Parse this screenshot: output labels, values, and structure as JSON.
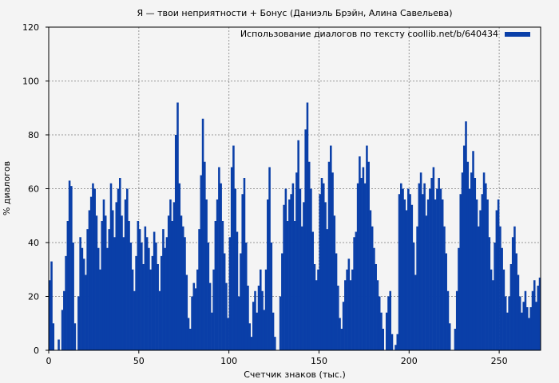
{
  "chart_data": {
    "type": "bar",
    "title": "Я — твои неприятности + Бонус (Даниэль Брэйн, Алина Савельева)",
    "xlabel": "Счетчик знаков (тыс.)",
    "ylabel": "% диалогов",
    "xlim": [
      0,
      273
    ],
    "ylim": [
      0,
      120
    ],
    "xticks": [
      "0",
      "50",
      "100",
      "150",
      "200",
      "250"
    ],
    "yticks": [
      "0",
      "20",
      "40",
      "60",
      "80",
      "100",
      "120"
    ],
    "grid": true,
    "legend_position": "top-right",
    "series": [
      {
        "name": "Использование диалогов по тексту coollib.net/b/640434",
        "color": "#0a3fa8",
        "points": [
          [
            1,
            26
          ],
          [
            2,
            33
          ],
          [
            3,
            10
          ],
          [
            5,
            0
          ],
          [
            6,
            4
          ],
          [
            7,
            0
          ],
          [
            8,
            15
          ],
          [
            9,
            22
          ],
          [
            10,
            35
          ],
          [
            11,
            48
          ],
          [
            12,
            63
          ],
          [
            13,
            61
          ],
          [
            14,
            40
          ],
          [
            15,
            10
          ],
          [
            16,
            0
          ],
          [
            17,
            20
          ],
          [
            18,
            42
          ],
          [
            19,
            38
          ],
          [
            20,
            34
          ],
          [
            21,
            28
          ],
          [
            22,
            45
          ],
          [
            23,
            52
          ],
          [
            24,
            57
          ],
          [
            25,
            62
          ],
          [
            26,
            60
          ],
          [
            27,
            50
          ],
          [
            28,
            38
          ],
          [
            29,
            30
          ],
          [
            30,
            48
          ],
          [
            31,
            56
          ],
          [
            32,
            50
          ],
          [
            33,
            38
          ],
          [
            34,
            45
          ],
          [
            35,
            62
          ],
          [
            36,
            52
          ],
          [
            37,
            42
          ],
          [
            38,
            55
          ],
          [
            39,
            60
          ],
          [
            40,
            64
          ],
          [
            41,
            50
          ],
          [
            42,
            42
          ],
          [
            43,
            56
          ],
          [
            44,
            60
          ],
          [
            45,
            48
          ],
          [
            46,
            40
          ],
          [
            47,
            30
          ],
          [
            48,
            22
          ],
          [
            49,
            35
          ],
          [
            50,
            48
          ],
          [
            51,
            45
          ],
          [
            52,
            40
          ],
          [
            53,
            32
          ],
          [
            54,
            46
          ],
          [
            55,
            42
          ],
          [
            56,
            38
          ],
          [
            57,
            30
          ],
          [
            58,
            35
          ],
          [
            59,
            44
          ],
          [
            60,
            40
          ],
          [
            61,
            32
          ],
          [
            62,
            22
          ],
          [
            63,
            35
          ],
          [
            64,
            45
          ],
          [
            65,
            38
          ],
          [
            66,
            42
          ],
          [
            67,
            50
          ],
          [
            68,
            56
          ],
          [
            69,
            48
          ],
          [
            70,
            55
          ],
          [
            71,
            80
          ],
          [
            72,
            92
          ],
          [
            73,
            62
          ],
          [
            74,
            50
          ],
          [
            75,
            46
          ],
          [
            76,
            42
          ],
          [
            77,
            28
          ],
          [
            78,
            12
          ],
          [
            79,
            8
          ],
          [
            80,
            20
          ],
          [
            81,
            25
          ],
          [
            82,
            23
          ],
          [
            83,
            30
          ],
          [
            84,
            45
          ],
          [
            85,
            65
          ],
          [
            86,
            86
          ],
          [
            87,
            70
          ],
          [
            88,
            56
          ],
          [
            89,
            40
          ],
          [
            90,
            25
          ],
          [
            91,
            14
          ],
          [
            92,
            30
          ],
          [
            93,
            48
          ],
          [
            94,
            56
          ],
          [
            95,
            68
          ],
          [
            96,
            62
          ],
          [
            97,
            48
          ],
          [
            98,
            36
          ],
          [
            99,
            25
          ],
          [
            100,
            12
          ],
          [
            101,
            42
          ],
          [
            102,
            68
          ],
          [
            103,
            76
          ],
          [
            104,
            60
          ],
          [
            105,
            44
          ],
          [
            106,
            20
          ],
          [
            107,
            36
          ],
          [
            108,
            58
          ],
          [
            109,
            64
          ],
          [
            110,
            40
          ],
          [
            111,
            24
          ],
          [
            112,
            10
          ],
          [
            113,
            5
          ],
          [
            114,
            18
          ],
          [
            115,
            22
          ],
          [
            116,
            14
          ],
          [
            117,
            24
          ],
          [
            118,
            30
          ],
          [
            119,
            22
          ],
          [
            120,
            15
          ],
          [
            121,
            30
          ],
          [
            122,
            56
          ],
          [
            123,
            68
          ],
          [
            124,
            40
          ],
          [
            125,
            14
          ],
          [
            126,
            5
          ],
          [
            127,
            0
          ],
          [
            128,
            0
          ],
          [
            129,
            20
          ],
          [
            130,
            36
          ],
          [
            131,
            54
          ],
          [
            132,
            60
          ],
          [
            133,
            48
          ],
          [
            134,
            56
          ],
          [
            135,
            58
          ],
          [
            136,
            62
          ],
          [
            137,
            48
          ],
          [
            138,
            66
          ],
          [
            139,
            78
          ],
          [
            140,
            60
          ],
          [
            141,
            46
          ],
          [
            142,
            55
          ],
          [
            143,
            82
          ],
          [
            144,
            92
          ],
          [
            145,
            70
          ],
          [
            146,
            60
          ],
          [
            147,
            44
          ],
          [
            148,
            32
          ],
          [
            149,
            26
          ],
          [
            150,
            30
          ],
          [
            151,
            58
          ],
          [
            152,
            64
          ],
          [
            153,
            62
          ],
          [
            154,
            55
          ],
          [
            155,
            45
          ],
          [
            156,
            70
          ],
          [
            157,
            76
          ],
          [
            158,
            66
          ],
          [
            159,
            50
          ],
          [
            160,
            36
          ],
          [
            161,
            24
          ],
          [
            162,
            12
          ],
          [
            163,
            8
          ],
          [
            164,
            18
          ],
          [
            165,
            26
          ],
          [
            166,
            30
          ],
          [
            167,
            34
          ],
          [
            168,
            26
          ],
          [
            169,
            30
          ],
          [
            170,
            42
          ],
          [
            171,
            44
          ],
          [
            172,
            62
          ],
          [
            173,
            72
          ],
          [
            174,
            64
          ],
          [
            175,
            68
          ],
          [
            176,
            62
          ],
          [
            177,
            76
          ],
          [
            178,
            70
          ],
          [
            179,
            52
          ],
          [
            180,
            46
          ],
          [
            181,
            38
          ],
          [
            182,
            32
          ],
          [
            183,
            26
          ],
          [
            184,
            20
          ],
          [
            185,
            14
          ],
          [
            186,
            8
          ],
          [
            187,
            0
          ],
          [
            188,
            14
          ],
          [
            189,
            20
          ],
          [
            190,
            22
          ],
          [
            191,
            6
          ],
          [
            192,
            0
          ],
          [
            193,
            2
          ],
          [
            194,
            6
          ],
          [
            195,
            58
          ],
          [
            196,
            62
          ],
          [
            197,
            60
          ],
          [
            198,
            56
          ],
          [
            199,
            52
          ],
          [
            200,
            60
          ],
          [
            201,
            58
          ],
          [
            202,
            54
          ],
          [
            203,
            40
          ],
          [
            204,
            28
          ],
          [
            205,
            46
          ],
          [
            206,
            62
          ],
          [
            207,
            66
          ],
          [
            208,
            58
          ],
          [
            209,
            62
          ],
          [
            210,
            50
          ],
          [
            211,
            56
          ],
          [
            212,
            60
          ],
          [
            213,
            64
          ],
          [
            214,
            68
          ],
          [
            215,
            56
          ],
          [
            216,
            60
          ],
          [
            217,
            64
          ],
          [
            218,
            60
          ],
          [
            219,
            56
          ],
          [
            220,
            46
          ],
          [
            221,
            36
          ],
          [
            222,
            22
          ],
          [
            223,
            10
          ],
          [
            224,
            0
          ],
          [
            225,
            0
          ],
          [
            226,
            8
          ],
          [
            227,
            22
          ],
          [
            228,
            38
          ],
          [
            229,
            58
          ],
          [
            230,
            66
          ],
          [
            231,
            76
          ],
          [
            232,
            85
          ],
          [
            233,
            70
          ],
          [
            234,
            60
          ],
          [
            235,
            66
          ],
          [
            236,
            74
          ],
          [
            237,
            64
          ],
          [
            238,
            56
          ],
          [
            239,
            46
          ],
          [
            240,
            52
          ],
          [
            241,
            58
          ],
          [
            242,
            66
          ],
          [
            243,
            62
          ],
          [
            244,
            56
          ],
          [
            245,
            42
          ],
          [
            246,
            30
          ],
          [
            247,
            26
          ],
          [
            248,
            40
          ],
          [
            249,
            52
          ],
          [
            250,
            56
          ],
          [
            251,
            46
          ],
          [
            252,
            38
          ],
          [
            253,
            30
          ],
          [
            254,
            20
          ],
          [
            255,
            14
          ],
          [
            256,
            20
          ],
          [
            257,
            32
          ],
          [
            258,
            42
          ],
          [
            259,
            46
          ],
          [
            260,
            36
          ],
          [
            261,
            28
          ],
          [
            262,
            20
          ],
          [
            263,
            14
          ],
          [
            264,
            18
          ],
          [
            265,
            22
          ],
          [
            266,
            16
          ],
          [
            267,
            12
          ],
          [
            268,
            16
          ],
          [
            269,
            22
          ],
          [
            270,
            26
          ],
          [
            271,
            18
          ],
          [
            272,
            24
          ],
          [
            273,
            27
          ]
        ]
      }
    ]
  }
}
